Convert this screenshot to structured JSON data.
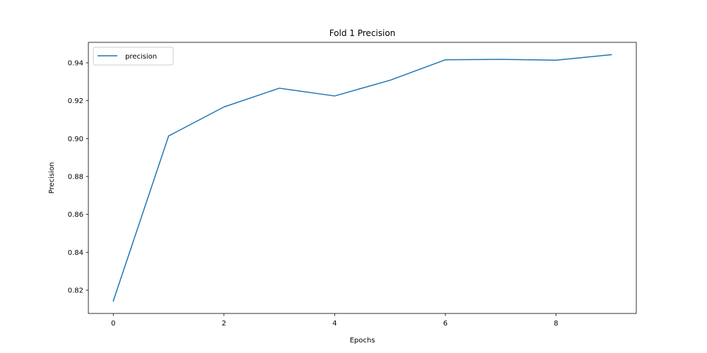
{
  "chart_data": {
    "type": "line",
    "title": "Fold 1 Precision",
    "xlabel": "Epochs",
    "ylabel": "Precision",
    "xlim": [
      -0.45,
      9.45
    ],
    "ylim": [
      0.8077,
      0.9508
    ],
    "xticks": [
      0,
      2,
      4,
      6,
      8
    ],
    "yticks": [
      0.82,
      0.84,
      0.86,
      0.88,
      0.9,
      0.92,
      0.94
    ],
    "ytick_labels": [
      "0.82",
      "0.84",
      "0.86",
      "0.88",
      "0.90",
      "0.92",
      "0.94"
    ],
    "grid": false,
    "legend_position": "top-left",
    "series": [
      {
        "name": "precision",
        "color": "#1f77b4",
        "x": [
          0,
          1,
          2,
          3,
          4,
          5,
          6,
          7,
          8,
          9
        ],
        "values": [
          0.8143,
          0.9014,
          0.9167,
          0.9266,
          0.9225,
          0.9308,
          0.9416,
          0.9418,
          0.9414,
          0.9443
        ]
      }
    ]
  }
}
